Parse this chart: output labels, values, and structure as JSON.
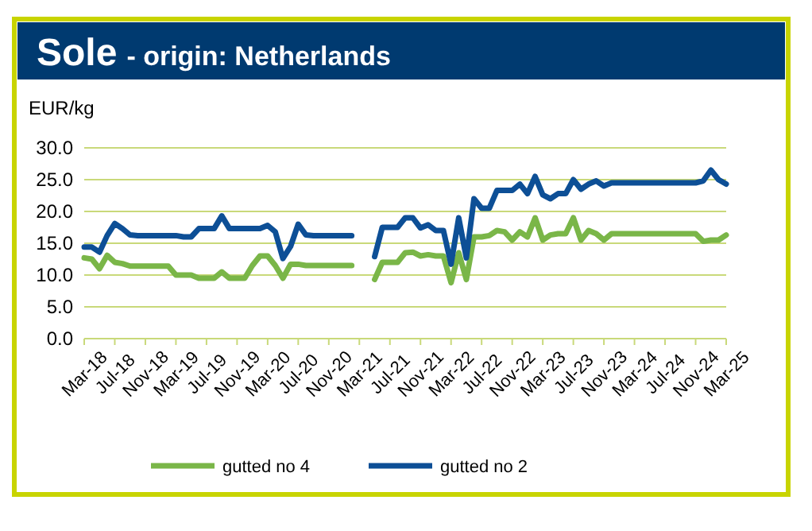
{
  "chart_data": {
    "type": "line",
    "title": "Sole",
    "subtitle": "- origin: Netherlands",
    "ylabel": "EUR/kg",
    "categories": [
      "Mar-18",
      null,
      null,
      null,
      "Jul-18",
      null,
      null,
      null,
      "Nov-18",
      null,
      null,
      null,
      "Mar-19",
      null,
      null,
      null,
      "Jul-19",
      null,
      null,
      null,
      "Nov-19",
      null,
      null,
      null,
      "Mar-20",
      null,
      null,
      null,
      "Jul-20",
      null,
      null,
      null,
      "Nov-20",
      null,
      null,
      null,
      "Mar-21",
      null,
      null,
      null,
      "Jul-21",
      null,
      null,
      null,
      "Nov-21",
      null,
      null,
      null,
      "Mar-22",
      null,
      null,
      null,
      "Jul-22",
      null,
      null,
      null,
      "Nov-22",
      null,
      null,
      null,
      "Mar-23",
      null,
      null,
      null,
      "Jul-23",
      null,
      null,
      null,
      "Nov-23",
      null,
      null,
      null,
      "Mar-24",
      null,
      null,
      null,
      "Jul-24",
      null,
      null,
      null,
      "Nov-24",
      null,
      null,
      null,
      "Mar-25"
    ],
    "series": [
      {
        "name": "gutted no 4",
        "color": "#7ab648",
        "values": [
          12.7,
          12.5,
          11.0,
          13.1,
          12.0,
          11.8,
          11.4,
          11.4,
          11.4,
          11.4,
          11.4,
          11.4,
          10.0,
          10.0,
          10.0,
          9.5,
          9.5,
          9.5,
          10.5,
          9.5,
          9.5,
          9.5,
          11.5,
          13.0,
          13.0,
          11.5,
          9.5,
          11.7,
          11.7,
          11.5,
          11.5,
          11.5,
          11.5,
          11.5,
          11.5,
          11.5,
          null,
          null,
          9.3,
          12.0,
          12.0,
          12.0,
          13.5,
          13.6,
          13.0,
          13.2,
          13.0,
          13.0,
          8.8,
          13.5,
          9.3,
          16.0,
          16.0,
          16.2,
          17.0,
          16.8,
          15.5,
          16.8,
          16.0,
          19.0,
          15.5,
          16.3,
          16.5,
          16.5,
          19.0,
          15.5,
          17.0,
          16.5,
          15.5,
          16.5,
          16.5,
          16.5,
          16.5,
          16.5,
          16.5,
          16.5,
          16.5,
          16.5,
          16.5,
          16.5,
          16.5,
          15.3,
          15.5,
          15.5,
          16.3
        ]
      },
      {
        "name": "gutted no 2",
        "color": "#0d4f96",
        "values": [
          14.4,
          14.4,
          13.6,
          16.2,
          18.1,
          17.3,
          16.3,
          16.2,
          16.2,
          16.2,
          16.2,
          16.2,
          16.2,
          16.0,
          16.0,
          17.3,
          17.3,
          17.3,
          19.3,
          17.3,
          17.3,
          17.3,
          17.3,
          17.3,
          17.8,
          16.8,
          12.6,
          14.5,
          18.0,
          16.3,
          16.2,
          16.2,
          16.2,
          16.2,
          16.2,
          16.2,
          null,
          null,
          12.9,
          17.5,
          17.5,
          17.5,
          19.0,
          19.0,
          17.4,
          17.9,
          17.0,
          17.0,
          11.7,
          19.0,
          12.7,
          22.0,
          20.5,
          20.5,
          23.3,
          23.3,
          23.3,
          24.3,
          22.8,
          25.5,
          22.6,
          22.0,
          22.8,
          22.8,
          25.0,
          23.5,
          24.3,
          24.8,
          24.0,
          24.5,
          24.5,
          24.5,
          24.5,
          24.5,
          24.5,
          24.5,
          24.5,
          24.5,
          24.5,
          24.5,
          24.5,
          24.8,
          26.5,
          25.0,
          24.3
        ]
      }
    ],
    "ylim": [
      0,
      30
    ],
    "yticks": [
      {
        "value": 0,
        "label": "0.0"
      },
      {
        "value": 5,
        "label": "5.0"
      },
      {
        "value": 10,
        "label": "10.0"
      },
      {
        "value": 15,
        "label": "15.0"
      },
      {
        "value": 20,
        "label": "20.0"
      },
      {
        "value": 25,
        "label": "25.0"
      },
      {
        "value": 30,
        "label": "30.0"
      }
    ],
    "grid": "y",
    "legend": "bottom",
    "marker": "none",
    "line_style": "solid"
  }
}
